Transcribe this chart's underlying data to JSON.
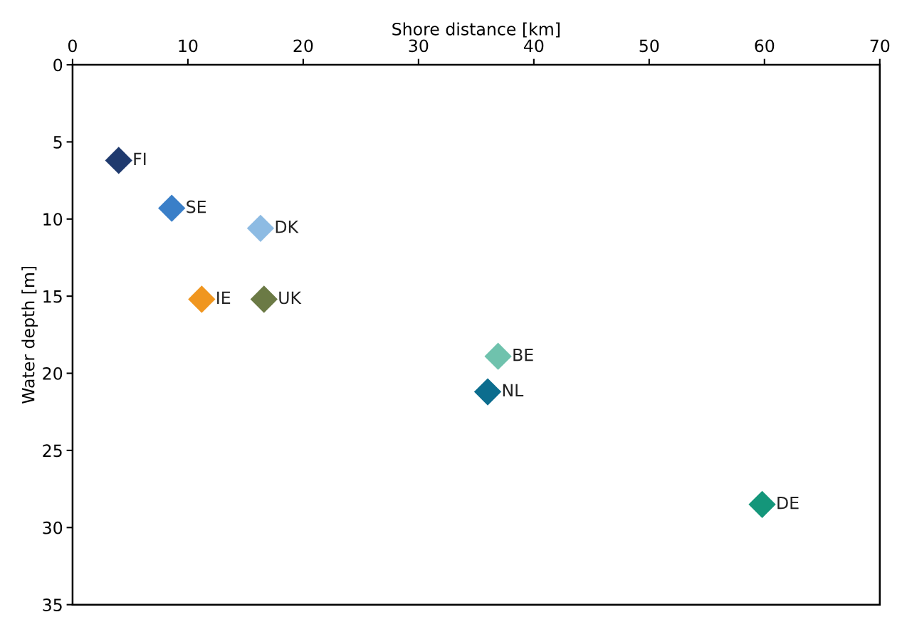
{
  "chart_data": {
    "type": "scatter",
    "xlabel": "Shore distance [km]",
    "ylabel": "Water depth [m]",
    "xlim": [
      0,
      70
    ],
    "xticks": [
      0,
      10,
      20,
      30,
      40,
      50,
      60,
      70
    ],
    "ylim": [
      35,
      0
    ],
    "yticks": [
      0,
      5,
      10,
      15,
      20,
      25,
      30,
      35
    ],
    "grid": false,
    "legend": false,
    "marker": "diamond",
    "series": [
      {
        "name": "FI",
        "color": "#1f3a6e",
        "x": [
          4.0
        ],
        "values": [
          6.2
        ]
      },
      {
        "name": "SE",
        "color": "#3a7fc8",
        "x": [
          8.6
        ],
        "values": [
          9.3
        ]
      },
      {
        "name": "DK",
        "color": "#8dbbe3",
        "x": [
          16.3
        ],
        "values": [
          10.6
        ]
      },
      {
        "name": "IE",
        "color": "#f0961f",
        "x": [
          11.2
        ],
        "values": [
          15.2
        ]
      },
      {
        "name": "UK",
        "color": "#6b7a45",
        "x": [
          16.6
        ],
        "values": [
          15.2
        ]
      },
      {
        "name": "BE",
        "color": "#6fc2ad",
        "x": [
          36.9
        ],
        "values": [
          18.9
        ]
      },
      {
        "name": "NL",
        "color": "#0c6d8e",
        "x": [
          36.0
        ],
        "values": [
          21.2
        ]
      },
      {
        "name": "DE",
        "color": "#14967a",
        "x": [
          59.8
        ],
        "values": [
          28.5
        ]
      }
    ]
  }
}
